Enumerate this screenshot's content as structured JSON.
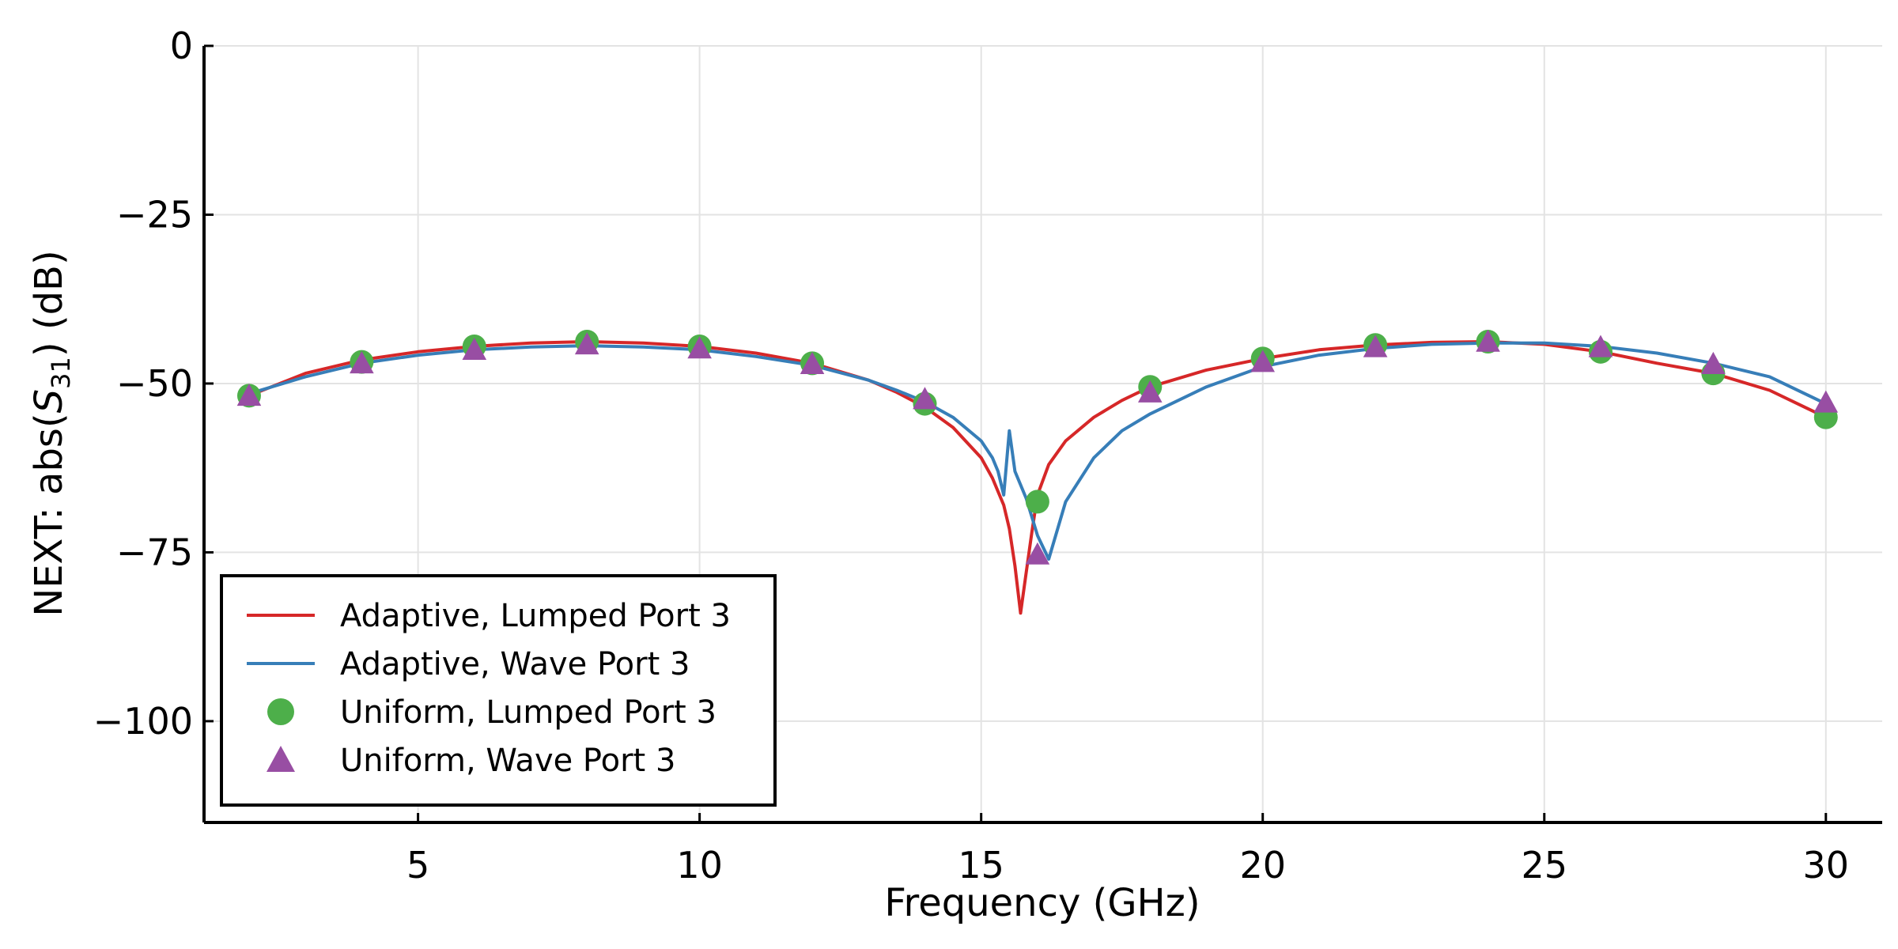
{
  "chart_data": {
    "type": "line",
    "title": "",
    "xlabel": "Frequency  (GHz)",
    "ylabel_prefix": "NEXT: abs(",
    "ylabel_var": "S",
    "ylabel_sub": "31",
    "ylabel_suffix": ")  (dB)",
    "xlim": [
      1.2,
      31
    ],
    "ylim": [
      -115,
      0
    ],
    "xticks": [
      5,
      10,
      15,
      20,
      25,
      30
    ],
    "yticks": [
      0,
      -25,
      -50,
      -75,
      -100
    ],
    "xtick_labels": [
      "5",
      "10",
      "15",
      "20",
      "25",
      "30"
    ],
    "ytick_labels": [
      "0",
      "−25",
      "−50",
      "−75",
      "−100"
    ],
    "grid": true,
    "legend_position": "lower-left",
    "series": [
      {
        "name": "Adaptive, Lumped Port 3",
        "kind": "line",
        "color": "#d62728",
        "x": [
          2,
          3,
          4,
          5,
          6,
          7,
          8,
          9,
          10,
          11,
          12,
          13,
          13.5,
          14,
          14.5,
          15,
          15.2,
          15.4,
          15.5,
          15.6,
          15.7,
          15.8,
          15.9,
          16,
          16.2,
          16.5,
          17,
          17.5,
          18,
          19,
          20,
          21,
          22,
          23,
          24,
          25,
          26,
          27,
          28,
          29,
          30
        ],
        "y": [
          -51.8,
          -48.5,
          -46.5,
          -45.3,
          -44.5,
          -44.0,
          -43.8,
          -44.0,
          -44.5,
          -45.5,
          -47.0,
          -49.5,
          -51.3,
          -53.5,
          -56.5,
          -61.0,
          -64.0,
          -68.0,
          -71.5,
          -77.0,
          -84.0,
          -78.0,
          -72.0,
          -66.5,
          -62.0,
          -58.5,
          -55.0,
          -52.5,
          -50.5,
          -48.0,
          -46.3,
          -45.0,
          -44.3,
          -43.9,
          -43.8,
          -44.2,
          -45.3,
          -47.0,
          -48.5,
          -51.0,
          -55.0
        ]
      },
      {
        "name": "Adaptive, Wave Port 3",
        "kind": "line",
        "color": "#377eb8",
        "x": [
          2,
          3,
          4,
          5,
          6,
          7,
          8,
          9,
          10,
          11,
          12,
          13,
          13.5,
          14,
          14.5,
          15,
          15.2,
          15.3,
          15.4,
          15.5,
          15.6,
          15.8,
          16,
          16.2,
          16.5,
          17,
          17.5,
          18,
          19,
          20,
          21,
          22,
          23,
          24,
          25,
          26,
          27,
          28,
          29,
          30
        ],
        "y": [
          -51.5,
          -49.0,
          -47.0,
          -45.8,
          -45.0,
          -44.6,
          -44.4,
          -44.6,
          -45.0,
          -46.0,
          -47.3,
          -49.5,
          -51.0,
          -52.7,
          -55.0,
          -58.5,
          -61.0,
          -63.0,
          -66.5,
          -57.0,
          -63.0,
          -67.0,
          -72.5,
          -76.0,
          -67.5,
          -61.0,
          -57.0,
          -54.5,
          -50.5,
          -47.5,
          -45.8,
          -44.8,
          -44.2,
          -44.0,
          -44.0,
          -44.5,
          -45.5,
          -47.0,
          -49.0,
          -53.0
        ]
      },
      {
        "name": "Uniform, Lumped Port 3",
        "kind": "marker",
        "marker": "circle",
        "color": "#4daf4a",
        "x": [
          2,
          4,
          6,
          8,
          10,
          12,
          14,
          16,
          18,
          20,
          22,
          24,
          26,
          28,
          30
        ],
        "y": [
          -51.8,
          -46.8,
          -44.5,
          -43.8,
          -44.5,
          -47.0,
          -53.0,
          -67.5,
          -50.5,
          -46.3,
          -44.3,
          -43.8,
          -45.3,
          -48.5,
          -55.0
        ]
      },
      {
        "name": "Uniform, Wave Port 3",
        "kind": "marker",
        "marker": "triangle",
        "color": "#984ea3",
        "x": [
          2,
          4,
          6,
          8,
          10,
          12,
          14,
          16,
          18,
          20,
          22,
          24,
          26,
          28,
          30
        ],
        "y": [
          -52.0,
          -47.2,
          -45.2,
          -44.4,
          -45.0,
          -47.3,
          -52.5,
          -75.5,
          -51.5,
          -47.0,
          -44.8,
          -44.0,
          -44.8,
          -47.3,
          -53.0
        ]
      }
    ]
  }
}
